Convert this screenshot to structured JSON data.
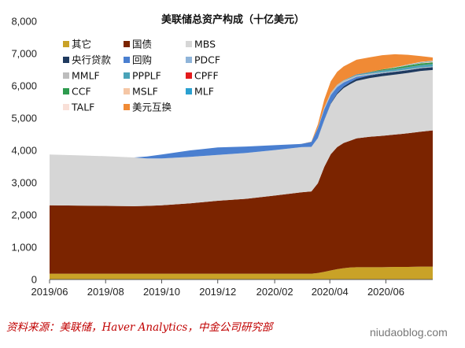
{
  "chart_data": {
    "type": "area",
    "title": "美联储总资产构成（十亿美元）",
    "xlabel": "",
    "ylabel": "",
    "ylim": [
      0,
      8000
    ],
    "yticks": [
      "0",
      "1,000",
      "2,000",
      "3,000",
      "4,000",
      "5,000",
      "6,000",
      "7,000",
      "8,000"
    ],
    "ytick_values": [
      0,
      1000,
      2000,
      3000,
      4000,
      5000,
      6000,
      7000,
      8000
    ],
    "xlim": [
      "2019-06-01",
      "2020-07-22"
    ],
    "xticks": [
      "2019/06",
      "2019/08",
      "2019/10",
      "2019/12",
      "2020/02",
      "2020/04",
      "2020/06"
    ],
    "xtick_dates": [
      "2019-06-01",
      "2019-08-01",
      "2019-10-01",
      "2019-12-01",
      "2020-02-01",
      "2020-04-01",
      "2020-06-01"
    ],
    "grid": false,
    "legend_position": "top-left",
    "stacked": true,
    "x": [
      "2019-06-01",
      "2019-07-01",
      "2019-08-01",
      "2019-09-01",
      "2019-09-15",
      "2019-10-01",
      "2019-11-01",
      "2019-12-01",
      "2020-01-01",
      "2020-02-01",
      "2020-03-01",
      "2020-03-12",
      "2020-03-19",
      "2020-03-26",
      "2020-04-02",
      "2020-04-09",
      "2020-04-16",
      "2020-04-23",
      "2020-04-30",
      "2020-05-14",
      "2020-05-28",
      "2020-06-11",
      "2020-06-25",
      "2020-07-09",
      "2020-07-22"
    ],
    "series": [
      {
        "name": "其它",
        "color": "#c9a227",
        "values": [
          180,
          180,
          180,
          180,
          180,
          180,
          180,
          180,
          180,
          180,
          180,
          180,
          200,
          240,
          280,
          320,
          350,
          370,
          380,
          380,
          380,
          390,
          390,
          400,
          400
        ]
      },
      {
        "name": "国债",
        "color": "#7b2400",
        "values": [
          2120,
          2110,
          2100,
          2090,
          2100,
          2120,
          2180,
          2260,
          2320,
          2420,
          2520,
          2550,
          2780,
          3250,
          3600,
          3780,
          3880,
          3930,
          3990,
          4040,
          4070,
          4100,
          4140,
          4180,
          4220
        ]
      },
      {
        "name": "MBS",
        "color": "#d6d6d6",
        "values": [
          1570,
          1560,
          1540,
          1510,
          1470,
          1450,
          1440,
          1420,
          1420,
          1410,
          1400,
          1380,
          1400,
          1450,
          1560,
          1640,
          1700,
          1750,
          1780,
          1820,
          1850,
          1860,
          1870,
          1880,
          1870
        ]
      },
      {
        "name": "央行贷款",
        "color": "#1f3a5f",
        "values": [
          0,
          0,
          0,
          0,
          0,
          0,
          0,
          0,
          0,
          0,
          0,
          0,
          5,
          10,
          20,
          35,
          50,
          60,
          70,
          80,
          85,
          85,
          85,
          85,
          85
        ]
      },
      {
        "name": "回购",
        "color": "#4a7fd0",
        "values": [
          0,
          0,
          0,
          0,
          60,
          120,
          200,
          230,
          200,
          150,
          100,
          150,
          300,
          320,
          250,
          180,
          120,
          80,
          60,
          20,
          10,
          5,
          5,
          5,
          5
        ]
      },
      {
        "name": "PDCF",
        "color": "#8fb4d9",
        "values": [
          0,
          0,
          0,
          0,
          0,
          0,
          0,
          0,
          0,
          0,
          0,
          0,
          10,
          30,
          30,
          25,
          15,
          10,
          8,
          5,
          3,
          2,
          2,
          2,
          2
        ]
      },
      {
        "name": "MMLF",
        "color": "#bdbdbd",
        "values": [
          0,
          0,
          0,
          0,
          0,
          0,
          0,
          0,
          0,
          0,
          0,
          0,
          10,
          30,
          50,
          50,
          45,
          40,
          35,
          30,
          25,
          20,
          20,
          18,
          15
        ]
      },
      {
        "name": "PPPLF",
        "color": "#4aa3b8",
        "values": [
          0,
          0,
          0,
          0,
          0,
          0,
          0,
          0,
          0,
          0,
          0,
          0,
          0,
          0,
          0,
          5,
          10,
          20,
          30,
          40,
          50,
          55,
          65,
          70,
          75
        ]
      },
      {
        "name": "CPFF",
        "color": "#e31a1c",
        "values": [
          0,
          0,
          0,
          0,
          0,
          0,
          0,
          0,
          0,
          0,
          0,
          0,
          0,
          0,
          0,
          0,
          0,
          5,
          5,
          5,
          5,
          5,
          5,
          5,
          5
        ]
      },
      {
        "name": "CCF",
        "color": "#2e9b4e",
        "values": [
          0,
          0,
          0,
          0,
          0,
          0,
          0,
          0,
          0,
          0,
          0,
          0,
          0,
          0,
          0,
          0,
          0,
          0,
          0,
          10,
          30,
          40,
          50,
          50,
          45
        ]
      },
      {
        "name": "MSLF",
        "color": "#f5c6a5",
        "values": [
          0,
          0,
          0,
          0,
          0,
          0,
          0,
          0,
          0,
          0,
          0,
          0,
          0,
          0,
          0,
          0,
          0,
          0,
          0,
          0,
          0,
          5,
          10,
          20,
          30
        ]
      },
      {
        "name": "MLF",
        "color": "#2aa0d0",
        "values": [
          0,
          0,
          0,
          0,
          0,
          0,
          0,
          0,
          0,
          0,
          0,
          0,
          0,
          0,
          0,
          0,
          0,
          0,
          0,
          0,
          0,
          5,
          10,
          15,
          15
        ]
      },
      {
        "name": "TALF",
        "color": "#f9e0d8",
        "values": [
          0,
          0,
          0,
          0,
          0,
          0,
          0,
          0,
          0,
          0,
          0,
          0,
          0,
          0,
          0,
          0,
          0,
          0,
          0,
          0,
          0,
          5,
          10,
          12,
          12
        ]
      },
      {
        "name": "美元互换",
        "color": "#f08a35",
        "values": [
          0,
          0,
          0,
          0,
          0,
          0,
          0,
          0,
          0,
          0,
          0,
          10,
          100,
          250,
          350,
          400,
          430,
          440,
          450,
          450,
          440,
          400,
          300,
          180,
          100
        ]
      }
    ]
  },
  "source_note": "资料来源：美联储，Haver Analytics，中金公司研究部",
  "watermark": "niudaoblog.com"
}
